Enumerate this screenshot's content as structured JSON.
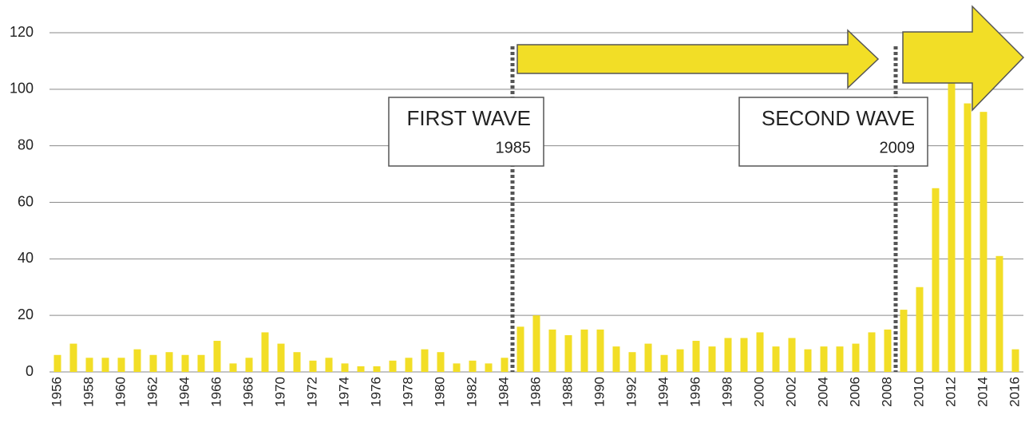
{
  "chart_data": {
    "type": "bar",
    "categories": [
      "1956",
      null,
      "1958",
      null,
      "1960",
      null,
      "1962",
      null,
      "1964",
      null,
      "1966",
      null,
      "1968",
      null,
      "1970",
      null,
      "1972",
      null,
      "1974",
      null,
      "1976",
      null,
      "1978",
      null,
      "1980",
      null,
      "1982",
      null,
      "1984",
      null,
      "1986",
      null,
      "1988",
      null,
      "1990",
      null,
      "1992",
      null,
      "1994",
      null,
      "1996",
      null,
      "1998",
      null,
      "2000",
      null,
      "2002",
      null,
      "2004",
      null,
      "2006",
      null,
      "2008",
      null,
      "2010",
      null,
      "2012",
      null,
      "2014",
      null,
      "2016"
    ],
    "values": [
      6,
      10,
      5,
      5,
      5,
      8,
      6,
      7,
      6,
      6,
      11,
      3,
      5,
      14,
      10,
      7,
      4,
      5,
      3,
      2,
      2,
      4,
      5,
      8,
      7,
      3,
      4,
      3,
      5,
      16,
      20,
      15,
      13,
      15,
      15,
      9,
      7,
      10,
      6,
      8,
      11,
      9,
      12,
      12,
      14,
      9,
      12,
      8,
      9,
      9,
      10,
      14,
      15,
      22,
      30,
      65,
      105,
      95,
      92,
      41,
      8
    ],
    "color": "#f2de26",
    "ylim": [
      0,
      120
    ],
    "yticks": [
      0,
      20,
      40,
      60,
      80,
      100,
      120
    ],
    "grid": true,
    "annotations": [
      {
        "title": "FIRST WAVE",
        "year": "1985"
      },
      {
        "title": "SECOND WAVE",
        "year": "2009"
      }
    ]
  }
}
